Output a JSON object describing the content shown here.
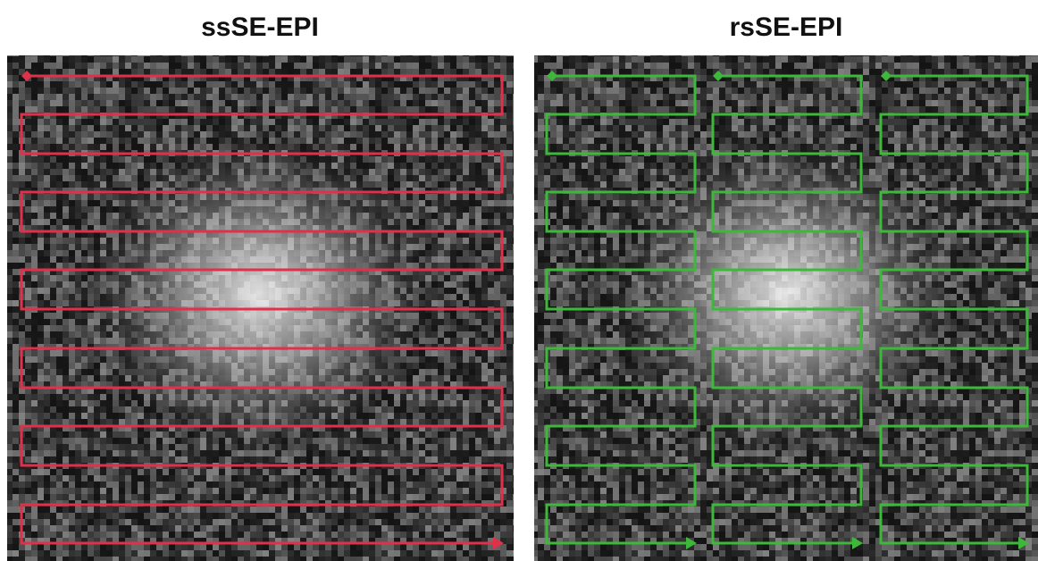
{
  "panels": [
    {
      "title": "ssSE-EPI"
    },
    {
      "title": "rsSE-EPI"
    }
  ]
}
